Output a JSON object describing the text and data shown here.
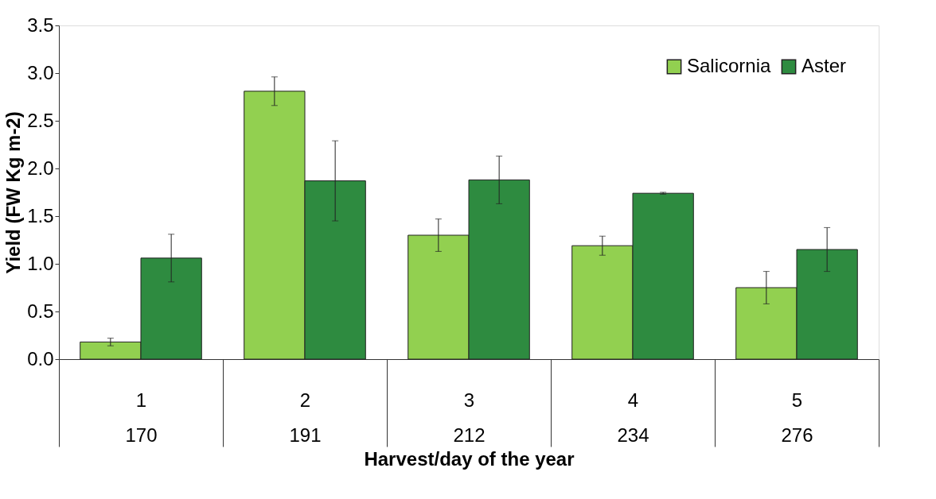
{
  "chart_data": {
    "type": "bar",
    "categories": [
      "1\n170",
      "2\n191",
      "3\n212",
      "4\n234",
      "5\n276"
    ],
    "xlabel": "Harvest/day of the year",
    "ylabel": "Yield (FW Kg m-2)",
    "series": [
      {
        "name": "Salicornia",
        "color": "#92d050",
        "values": [
          0.18,
          2.81,
          1.3,
          1.19,
          0.75
        ],
        "errors": [
          0.04,
          0.15,
          0.17,
          0.1,
          0.17
        ]
      },
      {
        "name": "Aster",
        "color": "#2e8b40",
        "values": [
          1.06,
          1.87,
          1.88,
          1.74,
          1.15
        ],
        "errors": [
          0.25,
          0.42,
          0.25,
          0.01,
          0.23
        ]
      }
    ],
    "ylim": [
      0,
      3.5
    ],
    "yticks": [
      {
        "value": 0,
        "label": "0.0"
      },
      0.5,
      {
        "value": 1,
        "label": "1.0"
      },
      1.5,
      {
        "value": 2,
        "label": "2.0"
      },
      2.5,
      {
        "value": 3,
        "label": "3.0"
      },
      3.5
    ],
    "legend": "top right",
    "grid": false
  }
}
